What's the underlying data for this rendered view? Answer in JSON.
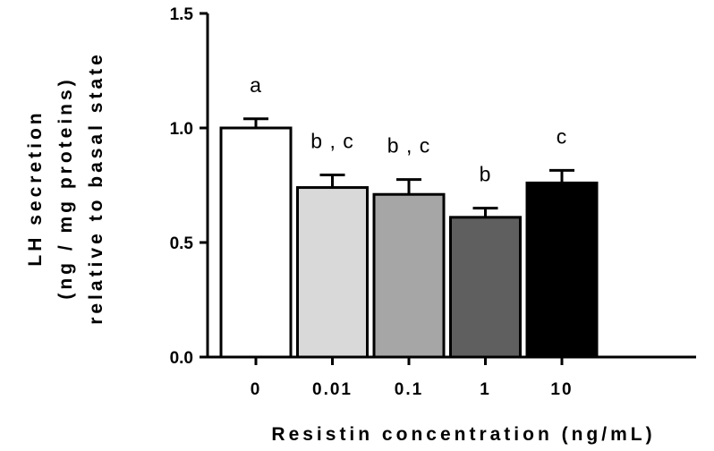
{
  "chart_data": {
    "type": "bar",
    "categories": [
      "0",
      "0.01",
      "0.1",
      "1",
      "10"
    ],
    "values": [
      1.0,
      0.74,
      0.71,
      0.61,
      0.76
    ],
    "error": [
      0.04,
      0.055,
      0.065,
      0.04,
      0.055
    ],
    "annotations": [
      "a",
      "b , c",
      "b , c",
      "b",
      "c"
    ],
    "bar_colors": [
      "#ffffff",
      "#d9d9d9",
      "#a6a6a6",
      "#5f5f5f",
      "#000000"
    ],
    "xlabel": "Resistin concentration (ng/mL)",
    "ylabel_lines": [
      "LH secretion",
      "(ng / mg proteins)",
      "relative to basal state"
    ],
    "ylim": [
      0.0,
      1.5
    ],
    "yticks": [
      "0.0",
      "0.5",
      "1.0",
      "1.5"
    ],
    "ytick_values": [
      0.0,
      0.5,
      1.0,
      1.5
    ],
    "grid": false
  }
}
